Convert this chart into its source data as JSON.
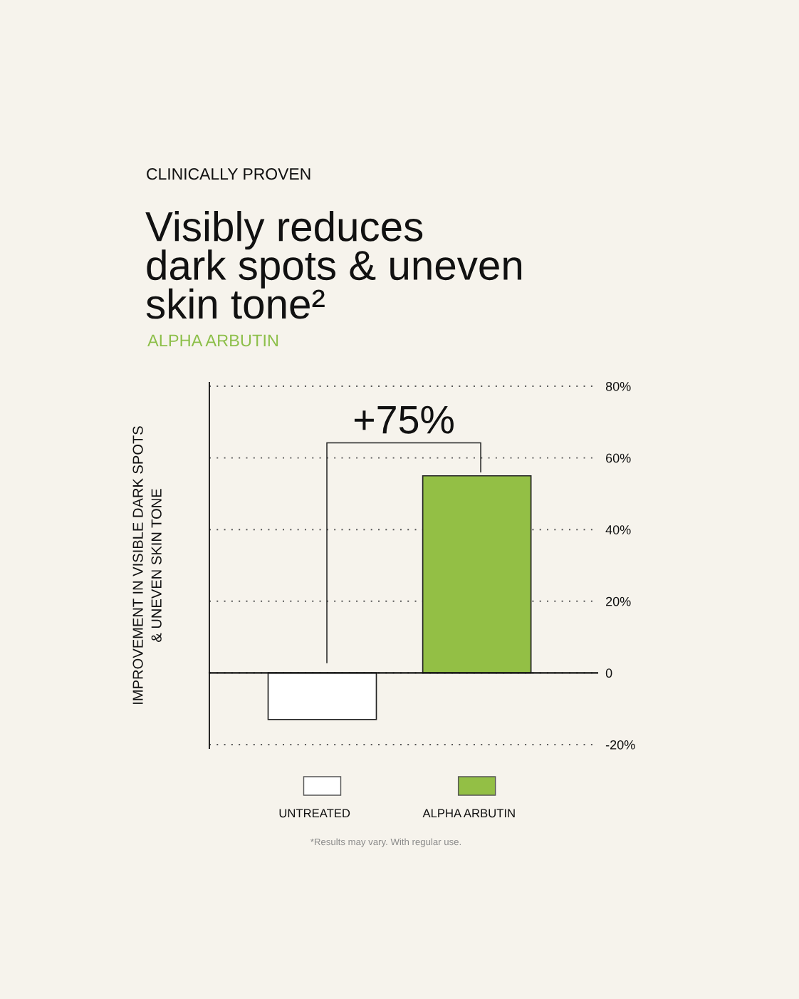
{
  "chart_data": {
    "type": "bar",
    "title": "Visibly reduces\ndark spots & uneven\nskin tone²",
    "subtitle": "ALPHA ARBUTIN",
    "ylabel": "IMPROVEMENT IN VISIBLE DARK SPOTS\n& UNEVEN SKIN TONE",
    "annotations": [
      "CLINICALLY PROVEN",
      "+75%",
      "*Results may vary. With regular use."
    ],
    "categories": [
      null,
      null
    ],
    "series": [
      {
        "name": "UNTREATED",
        "color": "#ffffff",
        "values": [
          -13,
          null
        ]
      },
      {
        "name": "ALPHA ARBUTIN",
        "color": "#93bf45",
        "values": [
          null,
          55
        ]
      }
    ],
    "ylim": [
      -21,
      81
    ],
    "yticks": [
      {
        "value": 80,
        "label": "80%"
      },
      {
        "value": 60,
        "label": "60%"
      },
      {
        "value": 40,
        "label": "40%"
      },
      {
        "value": 20,
        "label": "20%"
      },
      0,
      {
        "value": -20,
        "label": "-20%"
      }
    ],
    "grid": "y",
    "legend": "bottom"
  }
}
